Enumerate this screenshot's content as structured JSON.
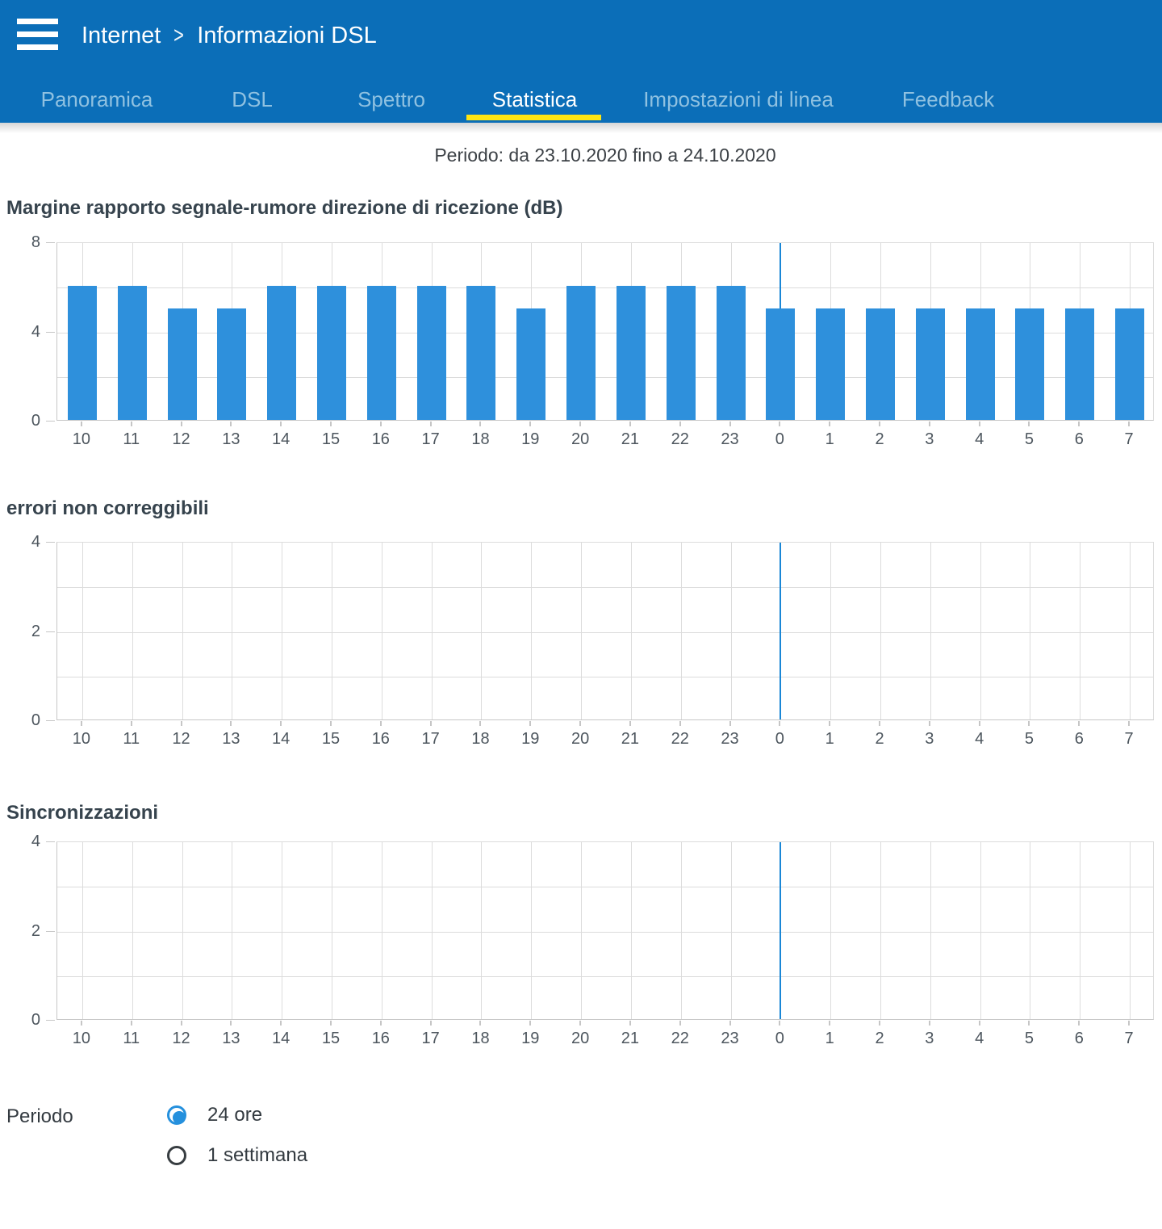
{
  "colors": {
    "header_bg": "#0b6eb8",
    "tab_inactive_text": "#8fc1e1",
    "tab_active_underline": "#ffe512",
    "bar": "#2e90dc",
    "midnight_line": "#1a87d6",
    "grid": "#dcdcdc",
    "axis": "#c6c6c6",
    "title_text": "#36434d",
    "axis_text": "#4d565e",
    "radio_blue": "#2590dd"
  },
  "header": {
    "breadcrumb": {
      "section": "Internet",
      "separator": ">",
      "page": "Informazioni DSL"
    }
  },
  "tabs": [
    {
      "label": "Panoramica",
      "active": false
    },
    {
      "label": "DSL",
      "active": false
    },
    {
      "label": "Spettro",
      "active": false
    },
    {
      "label": "Statistica",
      "active": true
    },
    {
      "label": "Impostazioni di linea",
      "active": false
    },
    {
      "label": "Feedback",
      "active": false
    }
  ],
  "period_text": "Periodo: da 23.10.2020 fino a 24.10.2020",
  "chart_data": [
    {
      "type": "bar",
      "title": "Margine rapporto segnale-rumore direzione di ricezione (dB)",
      "xlabel": "",
      "ylabel": "",
      "categories": [
        "10",
        "11",
        "12",
        "13",
        "14",
        "15",
        "16",
        "17",
        "18",
        "19",
        "20",
        "21",
        "22",
        "23",
        "0",
        "1",
        "2",
        "3",
        "4",
        "5",
        "6",
        "7"
      ],
      "values": [
        6,
        6,
        5,
        5,
        6,
        6,
        6,
        6,
        6,
        5,
        6,
        6,
        6,
        6,
        5,
        5,
        5,
        5,
        5,
        5,
        5,
        5
      ],
      "ylim": [
        0,
        8
      ],
      "ytick_labels": [
        0,
        4,
        8
      ],
      "ygrid_step": 2,
      "grid": true,
      "legend": "none",
      "midnight_marker_category": "0"
    },
    {
      "type": "bar",
      "title": "errori non correggibili",
      "xlabel": "",
      "ylabel": "",
      "categories": [
        "10",
        "11",
        "12",
        "13",
        "14",
        "15",
        "16",
        "17",
        "18",
        "19",
        "20",
        "21",
        "22",
        "23",
        "0",
        "1",
        "2",
        "3",
        "4",
        "5",
        "6",
        "7"
      ],
      "values": [
        0,
        0,
        0,
        0,
        0,
        0,
        0,
        0,
        0,
        0,
        0,
        0,
        0,
        0,
        0,
        0,
        0,
        0,
        0,
        0,
        0,
        0
      ],
      "ylim": [
        0,
        4
      ],
      "ytick_labels": [
        0,
        2,
        4
      ],
      "ygrid_step": 1,
      "grid": true,
      "legend": "none",
      "midnight_marker_category": "0"
    },
    {
      "type": "bar",
      "title": "Sincronizzazioni",
      "xlabel": "",
      "ylabel": "",
      "categories": [
        "10",
        "11",
        "12",
        "13",
        "14",
        "15",
        "16",
        "17",
        "18",
        "19",
        "20",
        "21",
        "22",
        "23",
        "0",
        "1",
        "2",
        "3",
        "4",
        "5",
        "6",
        "7"
      ],
      "values": [
        0,
        0,
        0,
        0,
        0,
        0,
        0,
        0,
        0,
        0,
        0,
        0,
        0,
        0,
        0,
        0,
        0,
        0,
        0,
        0,
        0,
        0
      ],
      "ylim": [
        0,
        4
      ],
      "ytick_labels": [
        0,
        2,
        4
      ],
      "ygrid_step": 1,
      "grid": true,
      "legend": "none",
      "midnight_marker_category": "0"
    }
  ],
  "period_selector": {
    "label": "Periodo",
    "options": [
      {
        "label": "24 ore",
        "selected": true
      },
      {
        "label": "1 settimana",
        "selected": false
      }
    ]
  }
}
